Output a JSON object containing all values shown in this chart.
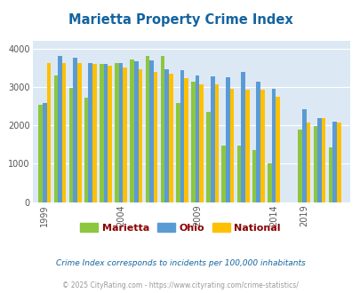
{
  "title": "Marietta Property Crime Index",
  "title_color": "#1464a0",
  "years": [
    1999,
    2000,
    2001,
    2002,
    2003,
    2004,
    2005,
    2006,
    2007,
    2008,
    2009,
    2010,
    2011,
    2012,
    2013,
    2014,
    2019,
    2020,
    2021
  ],
  "marietta": [
    2550,
    3300,
    2970,
    2730,
    3600,
    3620,
    3720,
    3800,
    3800,
    2590,
    3150,
    2350,
    1470,
    1470,
    1350,
    1010,
    1880,
    1990,
    1430
  ],
  "ohio": [
    2580,
    3820,
    3760,
    3620,
    3610,
    3620,
    3680,
    3700,
    3470,
    3450,
    3310,
    3270,
    3260,
    3390,
    3130,
    2960,
    2430,
    2190,
    2090
  ],
  "national": [
    3620,
    3630,
    3630,
    3600,
    3550,
    3500,
    3460,
    3390,
    3360,
    3230,
    3060,
    3060,
    2960,
    2940,
    2930,
    2750,
    2070,
    2190,
    2080
  ],
  "bar_colors": {
    "marietta": "#8dc63f",
    "ohio": "#5b9bd5",
    "national": "#ffc000"
  },
  "bg_color": "#dce9f5",
  "ylim": [
    0,
    4200
  ],
  "yticks": [
    0,
    1000,
    2000,
    3000,
    4000
  ],
  "xtick_labels": [
    "1999",
    "2004",
    "2009",
    "2014",
    "2019"
  ],
  "footnote1": "Crime Index corresponds to incidents per 100,000 inhabitants",
  "footnote2": "© 2025 CityRating.com - https://www.cityrating.com/crime-statistics/",
  "footnote1_color": "#1464a0",
  "footnote2_color": "#999999",
  "legend_labels": [
    "Marietta",
    "Ohio",
    "National"
  ],
  "legend_text_color": "#8B0000"
}
